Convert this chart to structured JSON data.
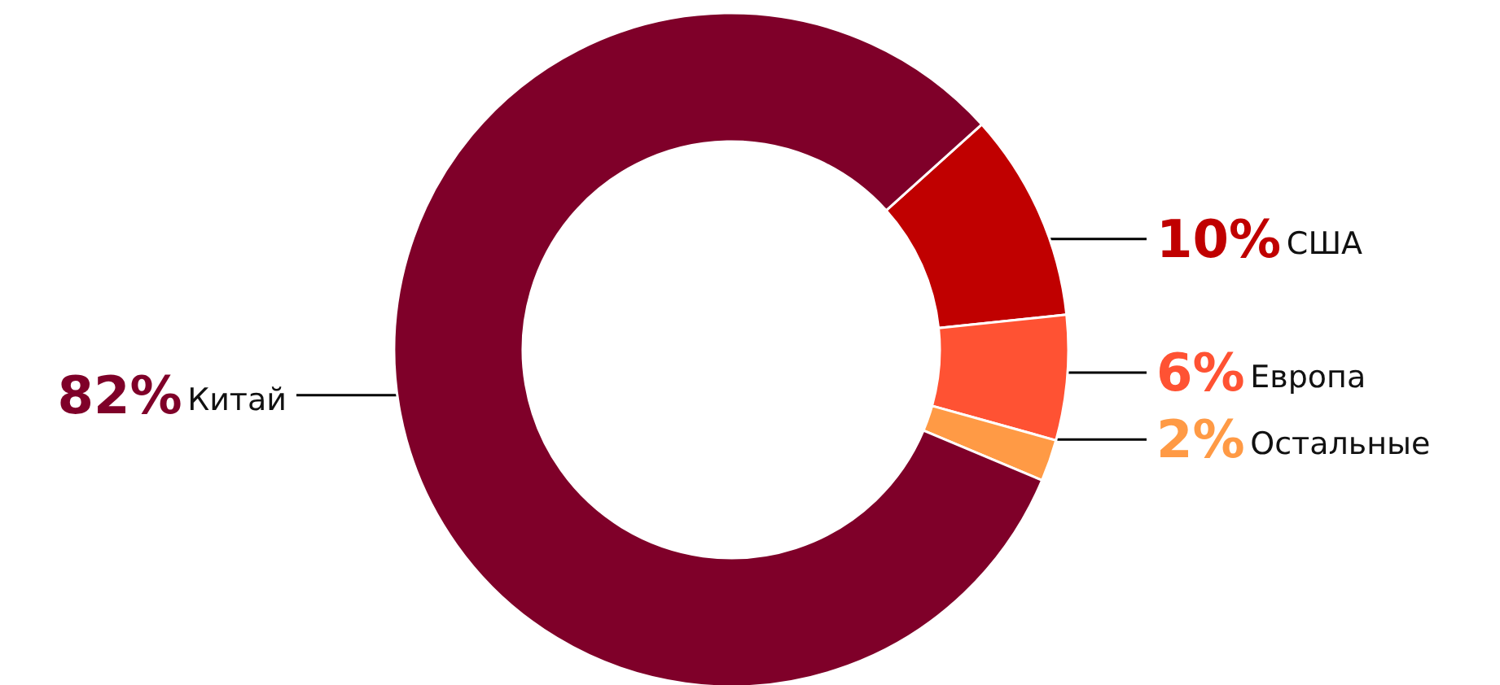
{
  "chart_data": {
    "type": "donut",
    "categories": [
      "США",
      "Европа",
      "Остальные",
      "Китай"
    ],
    "values": [
      10,
      6,
      2,
      82
    ],
    "value_labels": [
      "10%",
      "6%",
      "2%",
      "82%"
    ],
    "colors": [
      "#c00000",
      "#ff5233",
      "#ff9a45",
      "#7f0029"
    ],
    "legend": false
  }
}
